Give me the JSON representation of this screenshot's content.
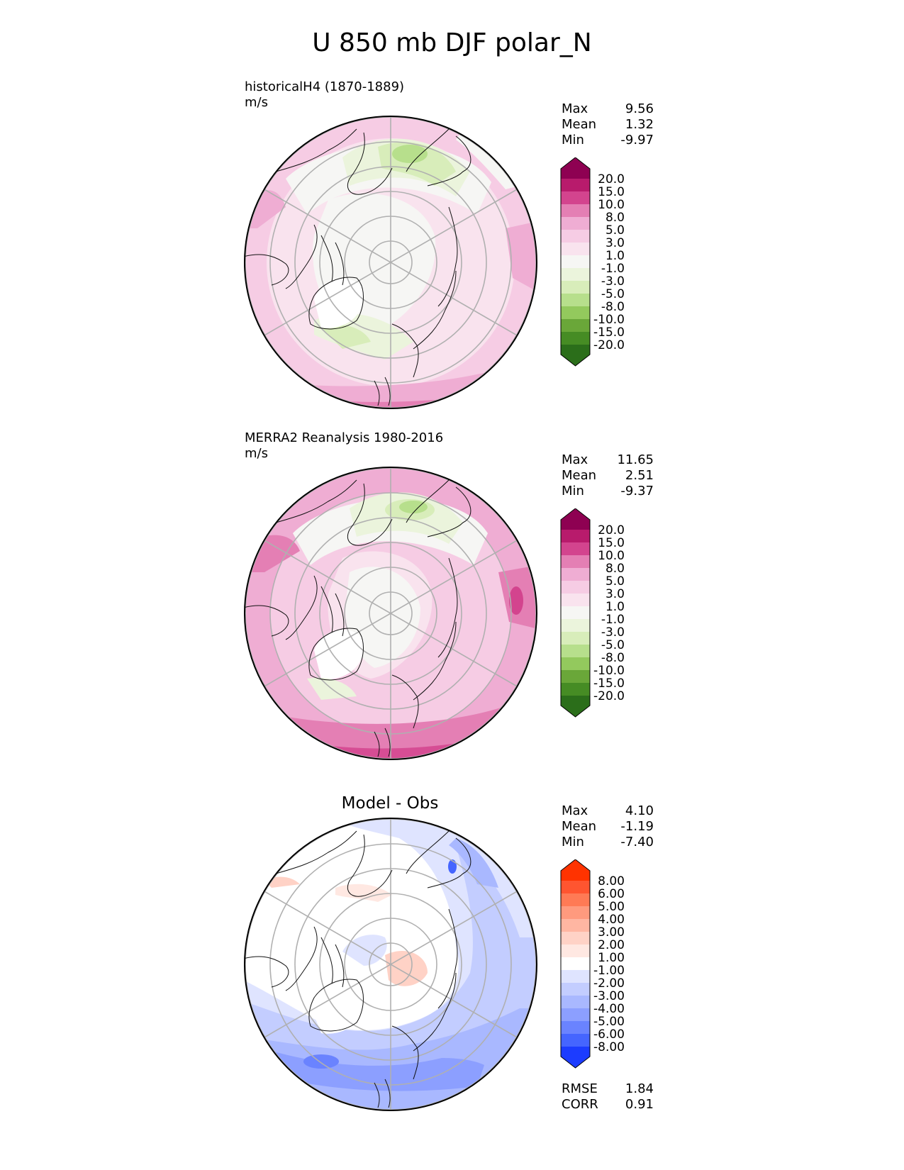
{
  "title": "U 850 mb DJF polar_N",
  "panels": [
    {
      "label": "historicalH4 (1870-1889)",
      "units": "m/s",
      "stats": {
        "max_label": "Max",
        "max": "9.56",
        "mean_label": "Mean",
        "mean": "1.32",
        "min_label": "Min",
        "min": "-9.97"
      },
      "colorbar": {
        "labels": [
          "20.0",
          "15.0",
          "10.0",
          "8.0",
          "5.0",
          "3.0",
          "1.0",
          "-1.0",
          "-3.0",
          "-5.0",
          "-8.0",
          "-10.0",
          "-15.0",
          "-20.0"
        ],
        "colors": [
          "#8e0152",
          "#b81b6c",
          "#d3448e",
          "#e47fb4",
          "#efadd3",
          "#f6cce4",
          "#f9e3ee",
          "#f6f6f4",
          "#ebf4dc",
          "#d8edba",
          "#b7df8c",
          "#93c95d",
          "#6aa739",
          "#468c24",
          "#2b6e1a"
        ]
      }
    },
    {
      "label": "MERRA2 Reanalysis 1980-2016",
      "units": "m/s",
      "stats": {
        "max_label": "Max",
        "max": "11.65",
        "mean_label": "Mean",
        "mean": "2.51",
        "min_label": "Min",
        "min": "-9.37"
      },
      "colorbar": {
        "labels": [
          "20.0",
          "15.0",
          "10.0",
          "8.0",
          "5.0",
          "3.0",
          "1.0",
          "-1.0",
          "-3.0",
          "-5.0",
          "-8.0",
          "-10.0",
          "-15.0",
          "-20.0"
        ],
        "colors": [
          "#8e0152",
          "#b81b6c",
          "#d3448e",
          "#e47fb4",
          "#efadd3",
          "#f6cce4",
          "#f9e3ee",
          "#f6f6f4",
          "#ebf4dc",
          "#d8edba",
          "#b7df8c",
          "#93c95d",
          "#6aa739",
          "#468c24",
          "#2b6e1a"
        ]
      }
    },
    {
      "title": "Model - Obs",
      "stats": {
        "max_label": "Max",
        "max": "4.10",
        "mean_label": "Mean",
        "mean": "-1.19",
        "min_label": "Min",
        "min": "-7.40"
      },
      "extra_stats": {
        "rmse_label": "RMSE",
        "rmse": "1.84",
        "corr_label": "CORR",
        "corr": "0.91"
      },
      "colorbar": {
        "labels": [
          "8.00",
          "6.00",
          "5.00",
          "4.00",
          "3.00",
          "2.00",
          "1.00",
          "-1.00",
          "-2.00",
          "-3.00",
          "-4.00",
          "-5.00",
          "-6.00",
          "-8.00"
        ],
        "colors": [
          "#ff3300",
          "#ff5530",
          "#ff7a55",
          "#ff9a7e",
          "#ffb6a2",
          "#ffd2c6",
          "#ffe8e2",
          "#ffffff",
          "#dfe4ff",
          "#c3cdff",
          "#a9b8ff",
          "#8c9fff",
          "#6a83ff",
          "#4565ff",
          "#1c3cff"
        ]
      }
    }
  ]
}
